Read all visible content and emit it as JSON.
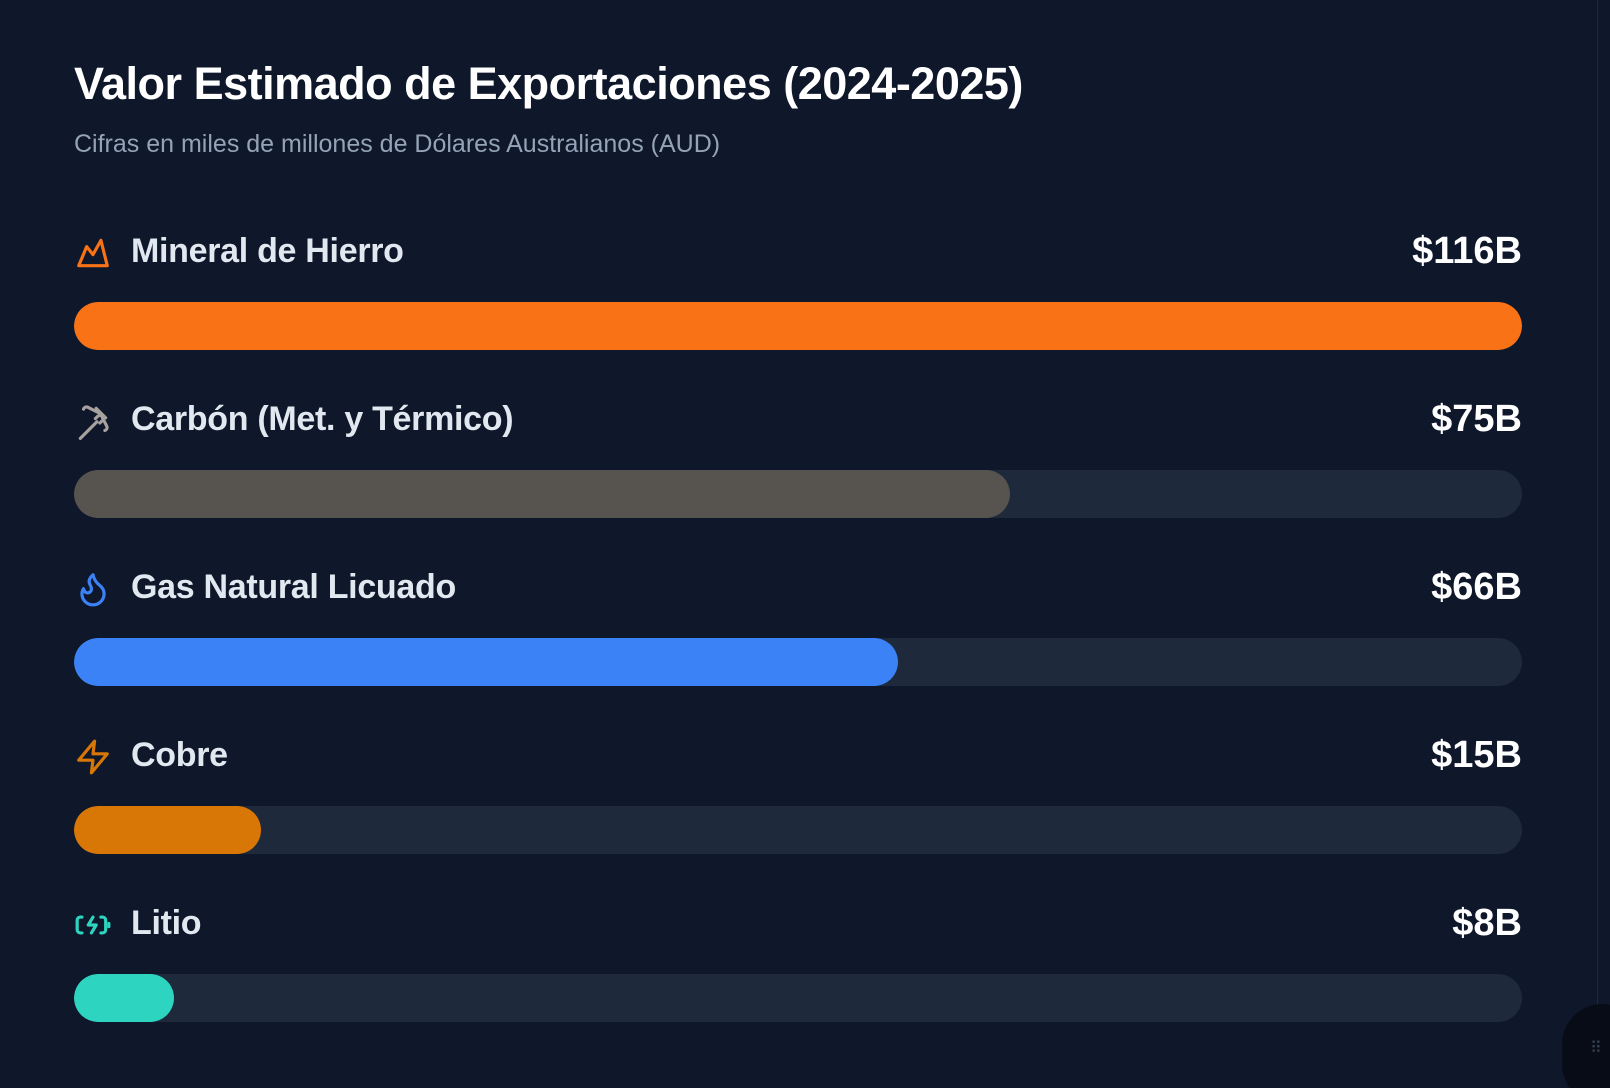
{
  "chart_data": {
    "type": "bar",
    "orientation": "horizontal",
    "title": "Valor Estimado de Exportaciones (2024-2025)",
    "subtitle": "Cifras en miles de millones de Dólares Australianos (AUD)",
    "xlim": [
      0,
      116
    ],
    "categories": [
      "Mineral de Hierro",
      "Carbón (Met. y Térmico)",
      "Gas Natural Licuado",
      "Cobre",
      "Litio"
    ],
    "values": [
      116,
      75,
      66,
      15,
      8
    ],
    "value_labels": [
      "$116B",
      "$75B",
      "$66B",
      "$15B",
      "$8B"
    ],
    "bar_colors": [
      "#f97316",
      "#57534e",
      "#3b82f6",
      "#d97706",
      "#2dd4bf"
    ],
    "icons": [
      "mountain-icon",
      "pickaxe-icon",
      "flame-icon",
      "zap-icon",
      "battery-charging-icon"
    ],
    "icon_colors": [
      "#f97316",
      "#a8a29e",
      "#3b82f6",
      "#d97706",
      "#2dd4bf"
    ],
    "track_color": "#1e293b",
    "background": "#0f172a",
    "grid": false,
    "legend": "none"
  }
}
